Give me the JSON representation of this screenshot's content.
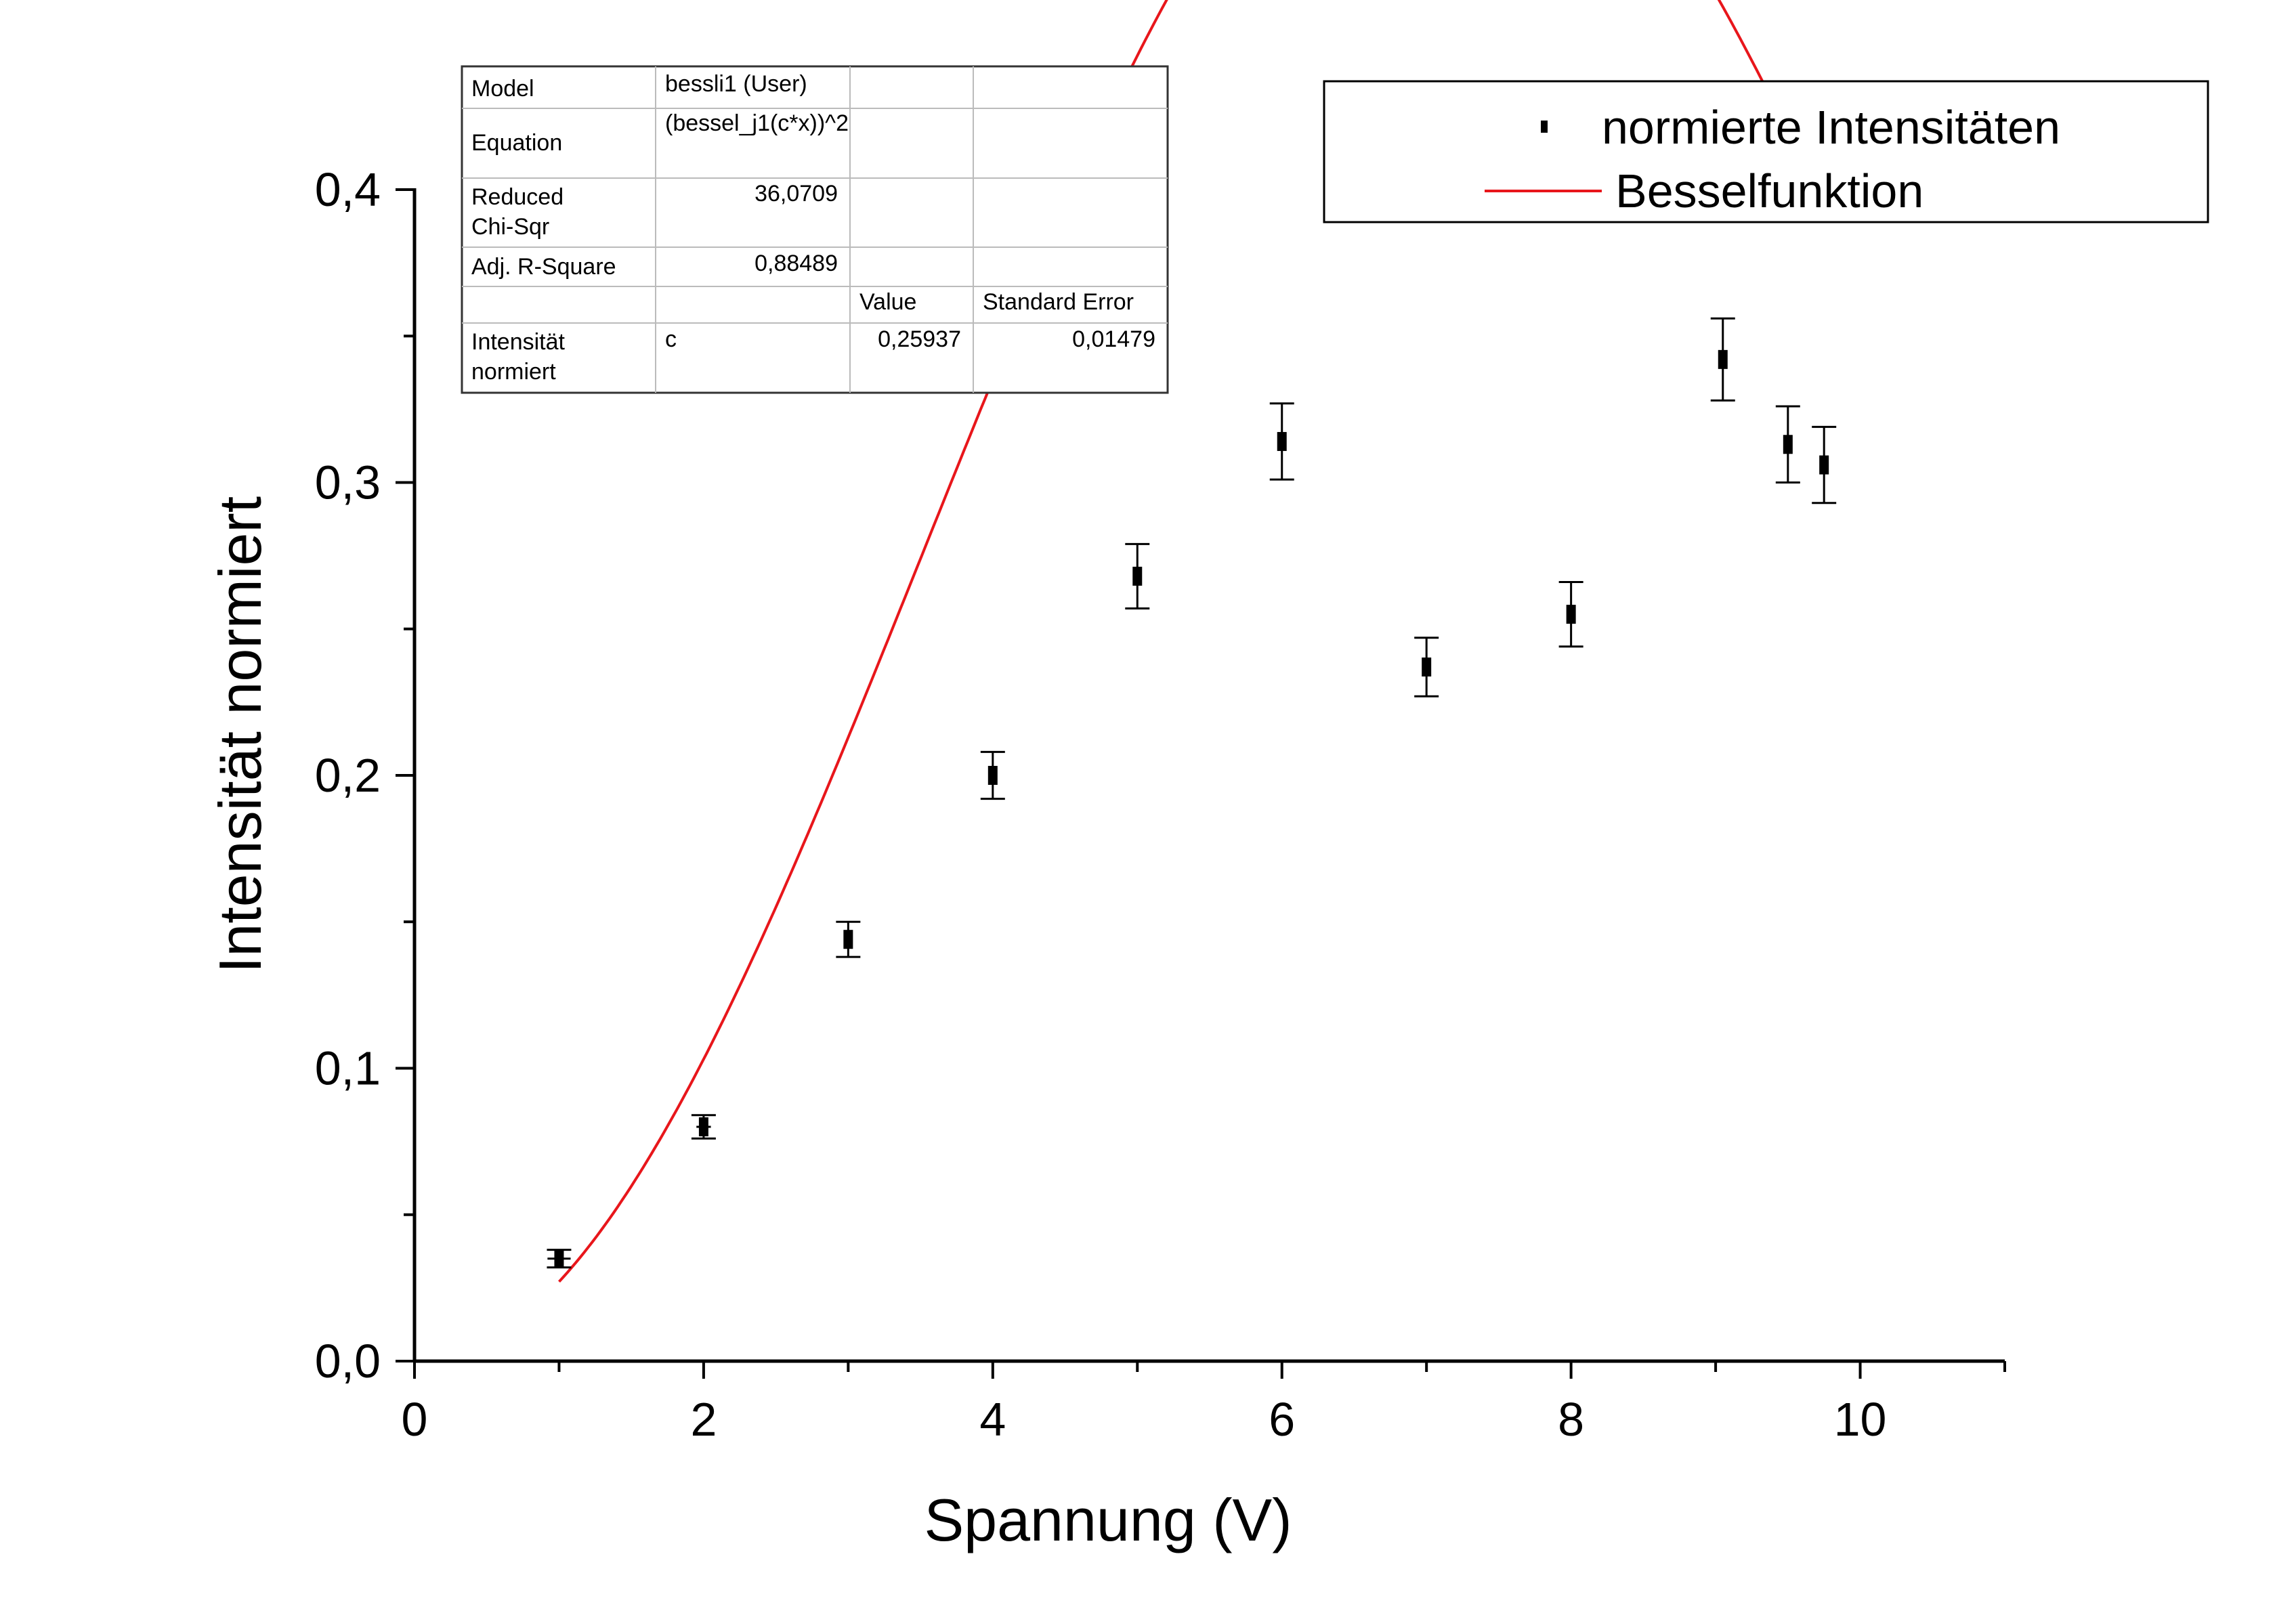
{
  "chart_data": {
    "type": "scatter",
    "xlabel": "Spannung (V)",
    "ylabel": "Intensität normiert",
    "xlim": [
      0,
      11
    ],
    "ylim": [
      0,
      0.4
    ],
    "x_ticks": [
      0,
      2,
      4,
      6,
      8,
      10
    ],
    "x_tick_labels": [
      "0",
      "2",
      "4",
      "6",
      "8",
      "10"
    ],
    "y_ticks": [
      0,
      0.1,
      0.2,
      0.3,
      0.4
    ],
    "y_tick_labels": [
      "0,0",
      "0,1",
      "0,2",
      "0,3",
      "0,4"
    ],
    "grid": false,
    "legend_position": "top-right",
    "series": [
      {
        "name": "normierte Intensitäten",
        "kind": "scatter-errorbar",
        "color": "#000000",
        "x": [
          1.0,
          2.0,
          3.0,
          4.0,
          5.0,
          6.0,
          7.0,
          8.0,
          9.05,
          9.5,
          9.75
        ],
        "y": [
          0.035,
          0.08,
          0.144,
          0.2,
          0.268,
          0.314,
          0.237,
          0.255,
          0.342,
          0.313,
          0.306
        ],
        "yerr": [
          0.003,
          0.004,
          0.006,
          0.008,
          0.011,
          0.013,
          0.01,
          0.011,
          0.014,
          0.013,
          0.013
        ],
        "xerr": [
          0.08,
          0.05,
          0.03,
          0.03,
          0.03,
          0.03,
          0.03,
          0.03,
          0.03,
          0.03,
          0.03
        ]
      },
      {
        "name": "Besselfunktion",
        "kind": "line",
        "color": "#e8161b",
        "fit_c": 0.25937,
        "x_range": [
          1.0,
          9.75
        ]
      }
    ]
  },
  "fit_table": {
    "rows": [
      [
        "Model",
        "bessli1 (User)",
        "",
        ""
      ],
      [
        "Equation",
        "(bessel_j1(c*x))^2",
        "",
        ""
      ],
      [
        "Reduced\nChi-Sqr",
        "36,0709",
        "",
        ""
      ],
      [
        "Adj. R-Square",
        "0,88489",
        "",
        ""
      ],
      [
        "",
        "",
        "Value",
        "Standard Error"
      ],
      [
        "Intensität\nnormiert",
        "c",
        "0,25937",
        "0,01479"
      ]
    ]
  }
}
